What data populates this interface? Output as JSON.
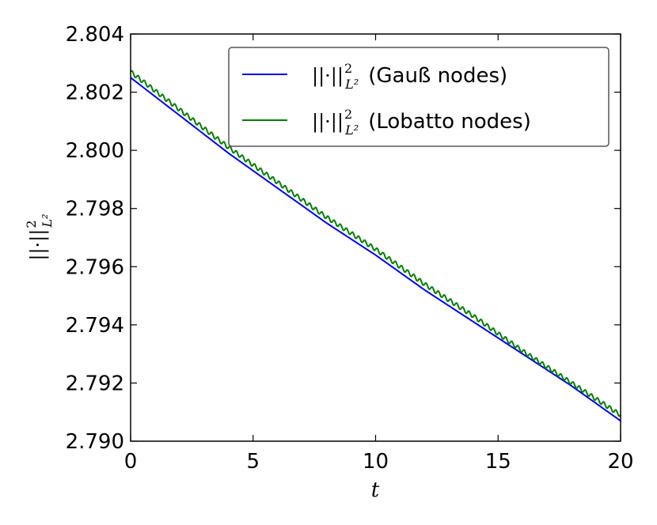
{
  "chart_data": {
    "type": "line",
    "title": "",
    "xlabel": "t",
    "ylabel": {
      "base": "||·||",
      "sup": "2",
      "sub": "L²"
    },
    "xlim": [
      0,
      20
    ],
    "ylim": [
      2.79,
      2.804
    ],
    "xticks": [
      0,
      5,
      10,
      15,
      20
    ],
    "xtick_labels": [
      "0",
      "5",
      "10",
      "15",
      "20"
    ],
    "yticks": [
      2.79,
      2.792,
      2.794,
      2.796,
      2.798,
      2.8,
      2.802,
      2.804
    ],
    "ytick_labels": [
      "2.790",
      "2.792",
      "2.794",
      "2.796",
      "2.798",
      "2.800",
      "2.802",
      "2.804"
    ],
    "grid": false,
    "legend_position": "upper-right",
    "series": [
      {
        "name": "||·||²_L² (Gauß nodes)",
        "label_norm": "||·||",
        "label_sup": "2",
        "label_sub": "L²",
        "label_text": "(Gauß nodes)",
        "color": "#0000ff",
        "x": [
          0,
          2,
          4,
          6,
          8,
          10,
          12,
          14,
          16,
          18,
          20
        ],
        "y": [
          2.8025,
          2.8012,
          2.7999,
          2.7987,
          2.7975,
          2.7964,
          2.7952,
          2.7941,
          2.793,
          2.7919,
          2.7907
        ]
      },
      {
        "name": "||·||²_L² (Lobatto nodes)",
        "label_norm": "||·||",
        "label_sup": "2",
        "label_sub": "L²",
        "label_text": "(Lobatto nodes)",
        "color": "#008000",
        "x": [
          0,
          2,
          4,
          6,
          8,
          10,
          12,
          14,
          16,
          18,
          20
        ],
        "y": [
          2.8027,
          2.8014,
          2.8001,
          2.7989,
          2.7977,
          2.7966,
          2.7954,
          2.7943,
          2.7931,
          2.792,
          2.7909
        ],
        "oscillation_amplitude": 7e-05
      }
    ]
  }
}
